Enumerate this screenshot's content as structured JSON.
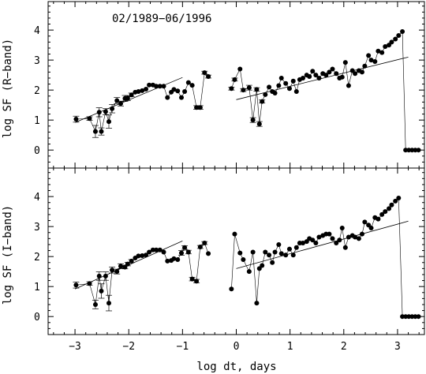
{
  "chart_data": [
    {
      "type": "scatter",
      "annotation": "02/1989−06/1996",
      "xlabel": "log dt, days",
      "ylabel": "log SF (R−band)",
      "xlim": [
        -3.5,
        3.5
      ],
      "ylim": [
        -0.6,
        4.95
      ],
      "xticks": [
        -3,
        -2,
        -1,
        0,
        1,
        2,
        3
      ],
      "xtick_labels": [
        "−3",
        "−2",
        "−1",
        "0",
        "1",
        "2",
        "3"
      ],
      "yticks": [
        0,
        1,
        2,
        3,
        4
      ],
      "ytick_labels": [
        "0",
        "1",
        "2",
        "3",
        "4"
      ],
      "grid": false,
      "series": [
        {
          "x": [
            -2.98,
            -2.73,
            -2.62,
            -2.55,
            -2.51,
            -2.43,
            -2.37,
            -2.31,
            -2.22,
            -2.15,
            -2.07,
            -2.02,
            -1.95,
            -1.88,
            -1.82,
            -1.75,
            -1.68,
            -1.62,
            -1.55,
            -1.49,
            -1.42,
            -1.35,
            -1.28,
            -1.21,
            -1.16,
            -1.09,
            -1.02,
            -0.96,
            -0.89,
            -0.82,
            -0.74,
            -0.67,
            -0.59,
            -0.52,
            -0.09,
            -0.03,
            0.07,
            0.13,
            0.24,
            0.31,
            0.38,
            0.43,
            0.48,
            0.54,
            0.61,
            0.67,
            0.72,
            0.79,
            0.84,
            0.92,
            0.99,
            1.06,
            1.12,
            1.18,
            1.24,
            1.31,
            1.36,
            1.42,
            1.48,
            1.54,
            1.61,
            1.67,
            1.73,
            1.79,
            1.86,
            1.92,
            1.97,
            2.03,
            2.09,
            2.16,
            2.21,
            2.28,
            2.34,
            2.39,
            2.46,
            2.51,
            2.58,
            2.64,
            2.71,
            2.77,
            2.84,
            2.89,
            2.96,
            3.02,
            3.09,
            3.15,
            3.21,
            3.27,
            3.33,
            3.39
          ],
          "y": [
            1.03,
            1.05,
            0.62,
            1.26,
            0.62,
            1.28,
            0.95,
            1.38,
            1.65,
            1.55,
            1.72,
            1.73,
            1.84,
            1.93,
            1.95,
            1.98,
            2.03,
            2.17,
            2.17,
            2.13,
            2.13,
            2.13,
            1.75,
            1.93,
            2.02,
            1.97,
            1.75,
            1.95,
            2.25,
            2.16,
            1.42,
            1.42,
            2.58,
            2.45,
            2.05,
            2.35,
            2.7,
            2.0,
            2.08,
            1.0,
            2.02,
            0.87,
            1.62,
            1.85,
            2.1,
            1.95,
            1.9,
            2.15,
            2.4,
            2.22,
            2.05,
            2.3,
            1.95,
            2.35,
            2.4,
            2.5,
            2.45,
            2.63,
            2.5,
            2.4,
            2.55,
            2.5,
            2.6,
            2.7,
            2.55,
            2.4,
            2.43,
            2.92,
            2.15,
            2.65,
            2.55,
            2.65,
            2.6,
            2.8,
            3.15,
            3.0,
            2.95,
            3.3,
            3.25,
            3.45,
            3.5,
            3.6,
            3.7,
            3.82,
            3.95,
            0,
            0,
            0,
            0,
            0
          ],
          "err": [
            0.1,
            0.06,
            0.2,
            0.15,
            0.12,
            0.1,
            0.22,
            0.14,
            0.1,
            0.08,
            0.1,
            0.08,
            0.06,
            0,
            0,
            0,
            0,
            0,
            0,
            0,
            0,
            0,
            0,
            0,
            0,
            0,
            0,
            0,
            0,
            0,
            0.06,
            0.06,
            0.05,
            0.05,
            0.05,
            0.05,
            0,
            0.05,
            0.08,
            0.08,
            0.06,
            0.08,
            0.05,
            0,
            0,
            0,
            0,
            0,
            0,
            0,
            0,
            0,
            0,
            0,
            0,
            0,
            0,
            0,
            0,
            0,
            0,
            0,
            0,
            0,
            0,
            0,
            0,
            0,
            0,
            0,
            0,
            0,
            0,
            0,
            0,
            0,
            0,
            0,
            0,
            0,
            0,
            0,
            0,
            0,
            0,
            0,
            0,
            0,
            0,
            0
          ]
        }
      ],
      "fit_lines": [
        {
          "x": [
            -3.0,
            -1.0
          ],
          "y": [
            0.92,
            2.42
          ]
        },
        {
          "x": [
            0.0,
            3.2
          ],
          "y": [
            1.68,
            3.1
          ]
        }
      ]
    },
    {
      "type": "scatter",
      "xlabel": "log dt, days",
      "ylabel": "log SF (I−band)",
      "xlim": [
        -3.5,
        3.5
      ],
      "ylim": [
        -0.6,
        4.95
      ],
      "xticks": [
        -3,
        -2,
        -1,
        0,
        1,
        2,
        3
      ],
      "xtick_labels": [
        "−3",
        "−2",
        "−1",
        "0",
        "1",
        "2",
        "3"
      ],
      "yticks": [
        0,
        1,
        2,
        3,
        4
      ],
      "ytick_labels": [
        "0",
        "1",
        "2",
        "3",
        "4"
      ],
      "grid": false,
      "series": [
        {
          "x": [
            -2.98,
            -2.73,
            -2.62,
            -2.55,
            -2.51,
            -2.43,
            -2.37,
            -2.31,
            -2.22,
            -2.15,
            -2.07,
            -2.02,
            -1.95,
            -1.88,
            -1.82,
            -1.75,
            -1.68,
            -1.62,
            -1.55,
            -1.49,
            -1.42,
            -1.35,
            -1.28,
            -1.21,
            -1.16,
            -1.09,
            -1.02,
            -0.96,
            -0.89,
            -0.82,
            -0.74,
            -0.67,
            -0.59,
            -0.52,
            -0.09,
            -0.03,
            0.07,
            0.13,
            0.24,
            0.31,
            0.38,
            0.43,
            0.48,
            0.54,
            0.61,
            0.67,
            0.72,
            0.79,
            0.84,
            0.92,
            0.99,
            1.06,
            1.12,
            1.18,
            1.24,
            1.31,
            1.36,
            1.42,
            1.48,
            1.54,
            1.61,
            1.67,
            1.73,
            1.79,
            1.86,
            1.92,
            1.97,
            2.03,
            2.09,
            2.16,
            2.21,
            2.28,
            2.34,
            2.39,
            2.46,
            2.51,
            2.58,
            2.64,
            2.71,
            2.77,
            2.84,
            2.89,
            2.96,
            3.02,
            3.09,
            3.15,
            3.21,
            3.27,
            3.33,
            3.39
          ],
          "y": [
            1.05,
            1.1,
            0.4,
            1.35,
            0.85,
            1.35,
            0.45,
            1.55,
            1.5,
            1.68,
            1.65,
            1.75,
            1.85,
            1.95,
            2.02,
            2.03,
            2.05,
            2.15,
            2.22,
            2.22,
            2.22,
            2.15,
            1.85,
            1.87,
            1.93,
            1.9,
            2.12,
            2.3,
            2.15,
            1.25,
            1.18,
            2.32,
            2.45,
            2.1,
            0.92,
            2.75,
            2.12,
            1.9,
            1.5,
            2.15,
            0.45,
            1.6,
            1.7,
            2.15,
            2.05,
            1.8,
            2.15,
            2.4,
            2.1,
            2.05,
            2.25,
            2.05,
            2.3,
            2.45,
            2.45,
            2.5,
            2.6,
            2.55,
            2.45,
            2.65,
            2.7,
            2.75,
            2.75,
            2.6,
            2.45,
            2.55,
            2.95,
            2.3,
            2.65,
            2.7,
            2.65,
            2.6,
            2.75,
            3.15,
            3.05,
            2.95,
            3.3,
            3.25,
            3.4,
            3.5,
            3.6,
            3.72,
            3.85,
            3.95,
            0,
            0,
            0,
            0,
            0,
            0
          ],
          "err": [
            0.1,
            0.06,
            0.14,
            0.14,
            0.24,
            0.14,
            0.26,
            0.1,
            0.08,
            0.08,
            0.06,
            0.06,
            0.05,
            0,
            0,
            0,
            0,
            0,
            0,
            0,
            0,
            0,
            0,
            0,
            0,
            0,
            0.08,
            0.06,
            0.06,
            0.06,
            0.06,
            0.05,
            0.05,
            0,
            0,
            0,
            0,
            0,
            0,
            0,
            0,
            0,
            0,
            0,
            0,
            0,
            0,
            0,
            0,
            0,
            0,
            0,
            0,
            0,
            0,
            0,
            0,
            0,
            0,
            0,
            0,
            0,
            0,
            0,
            0,
            0,
            0,
            0,
            0,
            0,
            0,
            0,
            0,
            0,
            0,
            0,
            0,
            0,
            0,
            0,
            0,
            0,
            0,
            0,
            0,
            0,
            0,
            0,
            0,
            0
          ]
        }
      ],
      "fit_lines": [
        {
          "x": [
            -3.0,
            -1.0
          ],
          "y": [
            0.92,
            2.52
          ]
        },
        {
          "x": [
            0.0,
            3.2
          ],
          "y": [
            1.6,
            3.18
          ]
        }
      ]
    }
  ]
}
